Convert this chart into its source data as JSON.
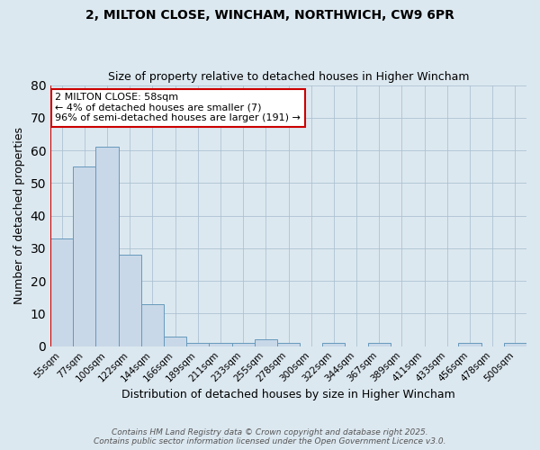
{
  "title_line1": "2, MILTON CLOSE, WINCHAM, NORTHWICH, CW9 6PR",
  "title_line2": "Size of property relative to detached houses in Higher Wincham",
  "xlabel": "Distribution of detached houses by size in Higher Wincham",
  "ylabel": "Number of detached properties",
  "bins": [
    "55sqm",
    "77sqm",
    "100sqm",
    "122sqm",
    "144sqm",
    "166sqm",
    "189sqm",
    "211sqm",
    "233sqm",
    "255sqm",
    "278sqm",
    "300sqm",
    "322sqm",
    "344sqm",
    "367sqm",
    "389sqm",
    "411sqm",
    "433sqm",
    "456sqm",
    "478sqm",
    "500sqm"
  ],
  "values": [
    33,
    55,
    61,
    28,
    13,
    3,
    1,
    1,
    1,
    2,
    1,
    0,
    1,
    0,
    1,
    0,
    0,
    0,
    1,
    0,
    1
  ],
  "bar_color": "#c8d8e8",
  "bar_edge_color": "#6699bb",
  "subject_line_color": "#cc0000",
  "annotation_text": "2 MILTON CLOSE: 58sqm\n← 4% of detached houses are smaller (7)\n96% of semi-detached houses are larger (191) →",
  "annotation_box_color": "#cc0000",
  "ylim": [
    0,
    80
  ],
  "yticks": [
    0,
    10,
    20,
    30,
    40,
    50,
    60,
    70,
    80
  ],
  "grid_color": "#aabfd0",
  "background_color": "#dce8f0",
  "fig_background_color": "#dce8f0",
  "footnote": "Contains HM Land Registry data © Crown copyright and database right 2025.\nContains public sector information licensed under the Open Government Licence v3.0."
}
